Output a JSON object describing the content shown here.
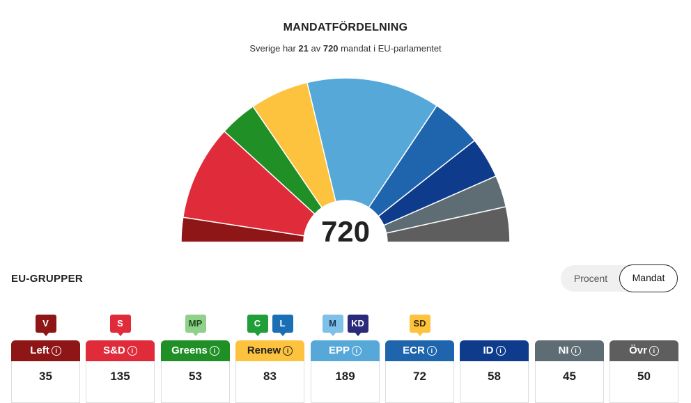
{
  "title": "MANDATFÖRDELNING",
  "subtitle": {
    "pre": "Sverige har ",
    "sweden_seats": "21",
    "mid": " av ",
    "total_seats": "720",
    "post": " mandat i EU-parlamentet"
  },
  "total_label": "720",
  "section_title": "EU-GRUPPER",
  "toggle": {
    "options": [
      "Procent",
      "Mandat"
    ],
    "selected": "Mandat"
  },
  "chart_data": {
    "type": "pie",
    "shape": "semicircle",
    "total": 720,
    "series": [
      {
        "label": "Left",
        "value": 35,
        "color": "#8e1616"
      },
      {
        "label": "S&D",
        "value": 135,
        "color": "#e02b3a"
      },
      {
        "label": "Greens",
        "value": 53,
        "color": "#1f8f26"
      },
      {
        "label": "Renew",
        "value": 83,
        "color": "#fdc23e"
      },
      {
        "label": "EPP",
        "value": 189,
        "color": "#55a8d8"
      },
      {
        "label": "ECR",
        "value": 72,
        "color": "#1f65ad"
      },
      {
        "label": "ID",
        "value": 58,
        "color": "#0f3b8c"
      },
      {
        "label": "NI",
        "value": 45,
        "color": "#5e6c74"
      },
      {
        "label": "Övr",
        "value": 50,
        "color": "#5e5e5e"
      }
    ]
  },
  "groups": [
    {
      "name": "Left",
      "value": "35",
      "color": "#8e1616",
      "text_color": "#ffffff",
      "badges": [
        {
          "label": "V",
          "bg": "#8e1616",
          "fg": "#ffffff"
        }
      ]
    },
    {
      "name": "S&D",
      "value": "135",
      "color": "#e02b3a",
      "text_color": "#ffffff",
      "badges": [
        {
          "label": "S",
          "bg": "#e02b3a",
          "fg": "#ffffff"
        }
      ]
    },
    {
      "name": "Greens",
      "value": "53",
      "color": "#1f8f26",
      "text_color": "#ffffff",
      "badges": [
        {
          "label": "MP",
          "bg": "#8fd08a",
          "fg": "#1d4a1d"
        }
      ]
    },
    {
      "name": "Renew",
      "value": "83",
      "color": "#fdc23e",
      "text_color": "#222222",
      "badges": [
        {
          "label": "C",
          "bg": "#1f9e3a",
          "fg": "#ffffff"
        },
        {
          "label": "L",
          "bg": "#1a6fb5",
          "fg": "#ffffff"
        }
      ]
    },
    {
      "name": "EPP",
      "value": "189",
      "color": "#55a8d8",
      "text_color": "#ffffff",
      "badges": [
        {
          "label": "M",
          "bg": "#7ec0e8",
          "fg": "#1a3550"
        },
        {
          "label": "KD",
          "bg": "#2b2a7a",
          "fg": "#ffffff"
        }
      ]
    },
    {
      "name": "ECR",
      "value": "72",
      "color": "#1f65ad",
      "text_color": "#ffffff",
      "badges": [
        {
          "label": "SD",
          "bg": "#fdc23e",
          "fg": "#3a2a00"
        }
      ]
    },
    {
      "name": "ID",
      "value": "58",
      "color": "#0f3b8c",
      "text_color": "#ffffff",
      "badges": []
    },
    {
      "name": "NI",
      "value": "45",
      "color": "#5e6c74",
      "text_color": "#ffffff",
      "badges": []
    },
    {
      "name": "Övr",
      "value": "50",
      "color": "#5e5e5e",
      "text_color": "#ffffff",
      "badges": []
    }
  ]
}
